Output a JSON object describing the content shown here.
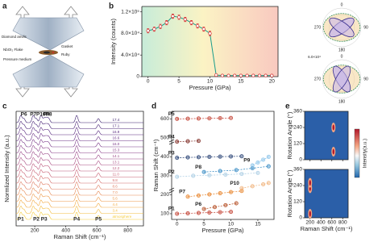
{
  "panel_labels": [
    "a",
    "b",
    "c",
    "d",
    "e"
  ],
  "diagram": {
    "labels": [
      "Diamond anvils",
      "Gasket",
      "NbOI₂ Flake",
      "Ruby",
      "Pressure medium"
    ]
  },
  "chart_data": [
    {
      "type": "line",
      "x_label": "Pressure (GPa)",
      "y_label": "Intensity (counts)",
      "color": "#1a9c8c",
      "x": [
        0,
        1,
        2,
        3,
        4,
        5,
        6,
        7,
        8,
        9,
        10,
        11,
        12,
        13,
        14,
        15,
        16,
        17,
        18,
        19,
        20
      ],
      "values": [
        85000,
        88000,
        93000,
        100000,
        112000,
        110000,
        106000,
        100000,
        94000,
        88000,
        80000,
        3000,
        2000,
        2000,
        2000,
        2000,
        2000,
        2000,
        2000,
        2000,
        2000
      ],
      "errors": [
        4000,
        4000,
        4000,
        4000,
        4000,
        4000,
        4000,
        4000,
        4000,
        4000,
        4000,
        1500,
        1500,
        1500,
        1500,
        1500,
        1500,
        1500,
        1500,
        1500,
        1500
      ],
      "xlim": [
        -1,
        21
      ],
      "xticks": [
        0,
        5,
        10,
        15,
        20
      ],
      "ylim": [
        0,
        130000
      ],
      "yticks": [
        0,
        {
          "value": 40000,
          "label": "4.0×10⁴"
        },
        {
          "value": 80000,
          "label": "8.0×10⁴"
        },
        {
          "value": 120000,
          "label": "1.2×10⁵"
        }
      ]
    },
    {
      "type": "polar",
      "plots": [
        {
          "angle_labels": [
            "0",
            "90",
            "180",
            "270"
          ]
        },
        {
          "angle_labels": [
            "0",
            "90",
            "180",
            "270"
          ],
          "radial_label": "6.0×10⁴"
        }
      ]
    },
    {
      "type": "spectra",
      "x_label": "Raman Shift (cm⁻¹)",
      "y_label": "Normlized Intensity (a.u.)",
      "xlim": [
        80,
        900
      ],
      "xticks": [
        200,
        400,
        600,
        800
      ],
      "series": [
        {
          "name": "17.4",
          "color": "#3b1f6e"
        },
        {
          "name": "17.1",
          "color": "#4a2578"
        },
        {
          "name": "16.9",
          "color": "#5a2c80"
        },
        {
          "name": "16.6",
          "color": "#6a3386"
        },
        {
          "name": "16.0",
          "color": "#7a3a89"
        },
        {
          "name": "15.3",
          "color": "#8b418a"
        },
        {
          "name": "14.1",
          "color": "#9b4888"
        },
        {
          "name": "13.1",
          "color": "#ab5084"
        },
        {
          "name": "12.2",
          "color": "#bb587d"
        },
        {
          "name": "11.0",
          "color": "#c96275"
        },
        {
          "name": "9.8",
          "color": "#d56e6b"
        },
        {
          "name": "8.6",
          "color": "#df7b60"
        },
        {
          "name": "7.0",
          "color": "#e78a55"
        },
        {
          "name": "5.6",
          "color": "#ee9a4a"
        },
        {
          "name": "4.4",
          "color": "#f2ab42"
        },
        {
          "name": "3.4",
          "color": "#f4bc3e"
        },
        {
          "name": "atmosphere",
          "color": "#f5cd3f"
        }
      ],
      "peaks": {
        "labels": [
          "P1",
          "P2",
          "P3",
          "P4",
          "P5",
          "P6",
          "P7",
          "P8",
          "P9",
          "P10"
        ],
        "x": [
          110,
          210,
          260,
          470,
          610,
          130,
          190,
          290,
          275,
          240
        ]
      }
    },
    {
      "type": "scatter",
      "x_label": "Pressure (GPa)",
      "y_label": "Raman Shift (cm⁻¹)",
      "xlim": [
        -1,
        18
      ],
      "xticks": [
        0,
        5,
        10,
        15
      ],
      "ylim": [
        70,
        640
      ],
      "yticks": [
        100,
        200,
        300,
        400,
        500,
        600
      ],
      "series": [
        {
          "name": "P1",
          "color": "#c0392b",
          "x": [
            0,
            2,
            4,
            6,
            8,
            10
          ],
          "values": [
            100,
            102,
            104,
            106,
            108,
            110
          ]
        },
        {
          "name": "P6",
          "color": "#b34a1e",
          "x": [
            5,
            7,
            9,
            11
          ],
          "values": [
            125,
            135,
            145,
            155
          ]
        },
        {
          "name": "P7",
          "color": "#e67e22",
          "x": [
            2,
            4,
            6,
            8,
            10,
            12
          ],
          "values": [
            190,
            196,
            202,
            208,
            214,
            220
          ]
        },
        {
          "name": "P10",
          "color": "#f0b27a",
          "x": [
            12,
            14,
            16,
            17
          ],
          "values": [
            235,
            245,
            255,
            262
          ]
        },
        {
          "name": "P2",
          "color": "#a9cce3",
          "x": [
            0,
            3,
            6,
            9,
            12,
            15
          ],
          "values": [
            295,
            300,
            303,
            306,
            310,
            315
          ]
        },
        {
          "name": "P8",
          "color": "#2e86c1",
          "x": [
            5,
            8,
            11,
            14,
            17
          ],
          "values": [
            320,
            325,
            330,
            340,
            350
          ]
        },
        {
          "name": "P9",
          "color": "#85c1e9",
          "x": [
            14,
            15,
            16,
            17
          ],
          "values": [
            355,
            370,
            385,
            400
          ]
        },
        {
          "name": "P3",
          "color": "#1f3a6e",
          "x": [
            0,
            2,
            4,
            6,
            8,
            10,
            12
          ],
          "values": [
            395,
            397,
            398,
            400,
            401,
            402,
            403
          ]
        },
        {
          "name": "P4",
          "color": "#7b241c",
          "x": [
            0,
            2,
            4
          ],
          "values": [
            480,
            482,
            484
          ]
        },
        {
          "name": "P5",
          "color": "#c0392b",
          "x": [
            0,
            2,
            4,
            6,
            8,
            10
          ],
          "values": [
            600,
            601,
            602,
            603,
            604,
            605
          ]
        }
      ]
    },
    {
      "type": "heatmap",
      "x_label": "Raman Shift (cm⁻¹)",
      "y_label": "Rotation Angle (°)",
      "colorbar_label": "Intensity(a.u.)",
      "xlim": [
        100,
        900
      ],
      "xticks": [
        200,
        400,
        600,
        800
      ],
      "ylim": [
        0,
        360
      ],
      "yticks": [
        0,
        120,
        240,
        360
      ],
      "panels": [
        {
          "x": [
            630,
            630
          ],
          "y": [
            60,
            240
          ]
        },
        {
          "x": [
            200,
            200,
            200
          ],
          "y": [
            30,
            220,
            260
          ]
        }
      ]
    }
  ]
}
